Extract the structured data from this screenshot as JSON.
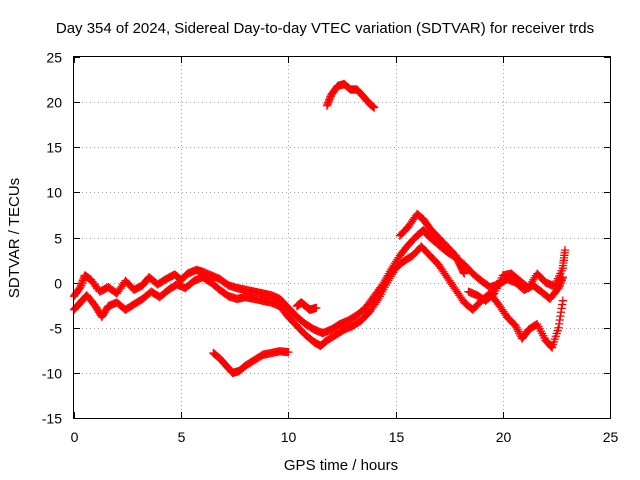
{
  "chart_data": {
    "type": "scatter",
    "title": "Day 354 of 2024, Sidereal Day-to-day VTEC variation (SDTVAR) for receiver trds",
    "xlabel": "GPS time / hours",
    "ylabel": "SDTVAR / TECUs",
    "xlim": [
      0,
      25
    ],
    "ylim": [
      -15,
      25
    ],
    "xticks": [
      0,
      5,
      10,
      15,
      20,
      25
    ],
    "yticks": [
      -15,
      -10,
      -5,
      0,
      5,
      10,
      15,
      20,
      25
    ],
    "grid": true,
    "marker": "+",
    "marker_color": "#ff0000",
    "series": [
      {
        "name": "track-main-upper",
        "points": [
          [
            0.0,
            -1.5
          ],
          [
            0.3,
            -0.5
          ],
          [
            0.5,
            0.8
          ],
          [
            0.8,
            0.3
          ],
          [
            1.2,
            -1.0
          ],
          [
            1.6,
            -0.5
          ],
          [
            2.0,
            -1.2
          ],
          [
            2.4,
            0.2
          ],
          [
            2.8,
            -0.8
          ],
          [
            3.2,
            -0.3
          ],
          [
            3.5,
            0.6
          ],
          [
            3.9,
            -0.2
          ],
          [
            4.3,
            0.4
          ],
          [
            4.7,
            0.9
          ],
          [
            5.0,
            0.3
          ],
          [
            5.3,
            1.0
          ],
          [
            5.7,
            1.4
          ],
          [
            6.0,
            1.2
          ],
          [
            6.4,
            0.8
          ],
          [
            6.8,
            0.4
          ],
          [
            7.2,
            -0.3
          ],
          [
            7.6,
            -0.6
          ],
          [
            8.0,
            -0.8
          ],
          [
            8.4,
            -1.0
          ],
          [
            8.8,
            -1.2
          ],
          [
            9.2,
            -1.4
          ],
          [
            9.6,
            -1.8
          ],
          [
            10.0,
            -2.8
          ],
          [
            10.4,
            -3.8
          ],
          [
            10.8,
            -4.6
          ],
          [
            11.2,
            -5.2
          ],
          [
            11.6,
            -5.6
          ],
          [
            12.0,
            -5.2
          ],
          [
            12.4,
            -4.6
          ],
          [
            12.8,
            -4.2
          ],
          [
            13.2,
            -3.6
          ],
          [
            13.6,
            -2.8
          ],
          [
            14.0,
            -1.5
          ],
          [
            14.4,
            -0.2
          ],
          [
            14.8,
            1.5
          ],
          [
            15.2,
            3.0
          ],
          [
            15.6,
            4.2
          ],
          [
            16.0,
            5.2
          ],
          [
            16.3,
            5.8
          ],
          [
            16.6,
            5.0
          ],
          [
            17.0,
            4.2
          ],
          [
            17.4,
            3.4
          ],
          [
            17.8,
            2.8
          ],
          [
            18.2,
            2.0
          ],
          [
            18.6,
            1.0
          ],
          [
            19.0,
            0.2
          ],
          [
            19.4,
            -0.5
          ],
          [
            19.8,
            -0.2
          ],
          [
            20.2,
            0.4
          ],
          [
            20.6,
            0.0
          ],
          [
            21.0,
            -0.8
          ],
          [
            21.4,
            -0.3
          ],
          [
            21.8,
            -1.0
          ],
          [
            22.2,
            -1.8
          ],
          [
            22.6,
            -0.6
          ],
          [
            22.8,
            0.6
          ]
        ]
      },
      {
        "name": "track-main-lower",
        "points": [
          [
            0.0,
            -3.0
          ],
          [
            0.3,
            -2.2
          ],
          [
            0.6,
            -1.4
          ],
          [
            1.0,
            -2.6
          ],
          [
            1.3,
            -3.8
          ],
          [
            1.6,
            -2.6
          ],
          [
            2.0,
            -2.2
          ],
          [
            2.4,
            -3.0
          ],
          [
            2.8,
            -2.4
          ],
          [
            3.2,
            -1.8
          ],
          [
            3.6,
            -1.0
          ],
          [
            4.0,
            -1.6
          ],
          [
            4.4,
            -0.8
          ],
          [
            4.8,
            -0.2
          ],
          [
            5.2,
            -0.6
          ],
          [
            5.6,
            0.2
          ],
          [
            6.0,
            0.6
          ],
          [
            6.4,
            0.0
          ],
          [
            6.8,
            -0.8
          ],
          [
            7.2,
            -1.5
          ],
          [
            7.6,
            -1.8
          ],
          [
            8.0,
            -1.6
          ],
          [
            8.4,
            -1.8
          ],
          [
            8.8,
            -2.0
          ],
          [
            9.2,
            -2.2
          ],
          [
            9.6,
            -2.6
          ],
          [
            10.0,
            -3.8
          ],
          [
            10.4,
            -4.8
          ],
          [
            10.8,
            -5.8
          ],
          [
            11.2,
            -6.6
          ],
          [
            11.5,
            -7.0
          ],
          [
            11.8,
            -6.4
          ],
          [
            12.2,
            -5.8
          ],
          [
            12.6,
            -5.2
          ],
          [
            13.0,
            -4.8
          ],
          [
            13.4,
            -4.2
          ],
          [
            13.8,
            -3.2
          ],
          [
            14.2,
            -1.8
          ],
          [
            14.6,
            0.0
          ],
          [
            15.0,
            1.6
          ],
          [
            15.4,
            2.4
          ],
          [
            15.8,
            3.0
          ],
          [
            16.2,
            4.0
          ],
          [
            16.6,
            3.0
          ],
          [
            17.0,
            2.0
          ],
          [
            17.4,
            0.6
          ],
          [
            17.8,
            -0.8
          ],
          [
            18.2,
            -2.2
          ],
          [
            18.6,
            -3.0
          ],
          [
            19.0,
            -2.0
          ],
          [
            19.4,
            -1.2
          ],
          [
            19.8,
            -2.4
          ],
          [
            20.2,
            -3.8
          ],
          [
            20.6,
            -4.8
          ],
          [
            20.9,
            -6.2
          ],
          [
            21.2,
            -5.2
          ],
          [
            21.6,
            -4.6
          ],
          [
            22.0,
            -6.4
          ],
          [
            22.3,
            -7.2
          ],
          [
            22.6,
            -5.0
          ],
          [
            22.8,
            -2.0
          ]
        ]
      },
      {
        "name": "track-upper-arc",
        "points": [
          [
            11.8,
            19.6
          ],
          [
            12.0,
            20.8
          ],
          [
            12.3,
            21.8
          ],
          [
            12.6,
            22.0
          ],
          [
            12.9,
            21.4
          ],
          [
            13.2,
            21.4
          ],
          [
            13.5,
            20.6
          ],
          [
            13.8,
            19.8
          ],
          [
            14.0,
            19.4
          ]
        ]
      },
      {
        "name": "track-lower-arc",
        "points": [
          [
            6.5,
            -7.8
          ],
          [
            6.8,
            -8.4
          ],
          [
            7.1,
            -9.2
          ],
          [
            7.4,
            -10.0
          ],
          [
            7.7,
            -9.8
          ],
          [
            8.0,
            -9.2
          ],
          [
            8.4,
            -8.6
          ],
          [
            8.8,
            -8.0
          ],
          [
            9.2,
            -7.8
          ],
          [
            9.6,
            -7.6
          ],
          [
            10.0,
            -7.7
          ]
        ]
      },
      {
        "name": "track-short",
        "points": [
          [
            10.4,
            -2.6
          ],
          [
            10.6,
            -2.2
          ],
          [
            10.8,
            -2.6
          ],
          [
            11.0,
            -3.0
          ],
          [
            11.3,
            -2.8
          ]
        ]
      },
      {
        "name": "track-afternoon-peak",
        "points": [
          [
            15.2,
            5.2
          ],
          [
            15.6,
            6.2
          ],
          [
            16.0,
            7.6
          ],
          [
            16.3,
            7.0
          ],
          [
            16.6,
            6.0
          ],
          [
            17.0,
            5.0
          ],
          [
            17.4,
            4.0
          ],
          [
            17.8,
            3.0
          ],
          [
            18.0,
            2.0
          ],
          [
            18.2,
            1.0
          ]
        ]
      },
      {
        "name": "track-late",
        "points": [
          [
            18.4,
            -1.0
          ],
          [
            18.8,
            -1.4
          ],
          [
            19.2,
            -2.0
          ],
          [
            19.6,
            -1.2
          ],
          [
            20.0,
            0.8
          ],
          [
            20.4,
            1.0
          ],
          [
            20.8,
            0.2
          ],
          [
            21.2,
            -0.6
          ],
          [
            21.6,
            1.0
          ],
          [
            22.0,
            0.0
          ],
          [
            22.4,
            -0.4
          ],
          [
            22.8,
            1.6
          ],
          [
            22.9,
            3.6
          ]
        ]
      }
    ]
  }
}
